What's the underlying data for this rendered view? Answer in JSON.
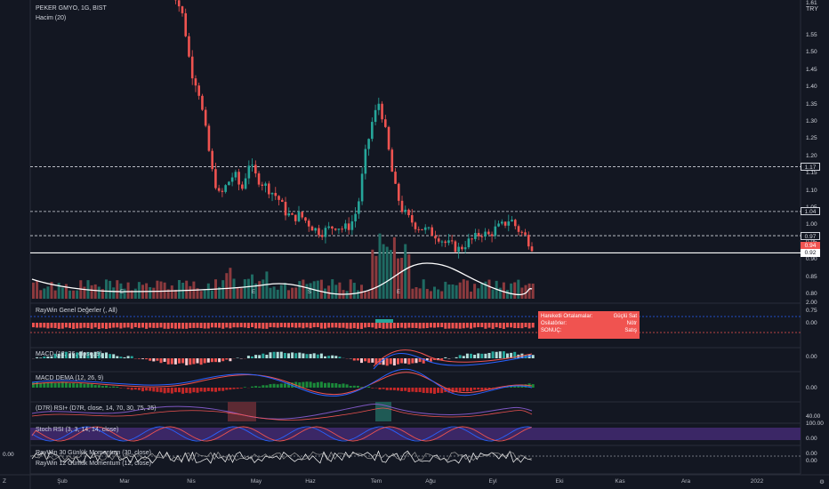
{
  "header": {
    "title": "PEKER GMYO, 1G, BIST",
    "volume": "Hacim (20)",
    "currency": "TRY"
  },
  "price_axis": {
    "top_value": "1.61",
    "labels": [
      "1.55",
      "1.50",
      "1.45",
      "1.40",
      "1.35",
      "1.30",
      "1.25",
      "1.20",
      "1.15",
      "1.10",
      "1.05",
      "1.00",
      "0.95",
      "0.90",
      "0.85",
      "0.80",
      "0.75"
    ],
    "rsi_upper": "40.00",
    "stoch_upper": "100.00",
    "stoch_lower": "0.00",
    "raywin_value": "0.00",
    "macd_value": "0.00",
    "macd_dema_value": "0.00",
    "momentum_value": "0.00",
    "momentum_value2": "0.00",
    "left_value": "0.00",
    "bottom_value": "2.00"
  },
  "tags": [
    {
      "value": "1.17",
      "style": "outline"
    },
    {
      "value": "1.04",
      "style": "outline"
    },
    {
      "value": "0.97",
      "style": "outline"
    },
    {
      "value": "0.94",
      "style": "red"
    },
    {
      "value": "0.92",
      "style": "white"
    }
  ],
  "indicators": {
    "raywin": "RayWin Genel Değerler (, All)",
    "macd": "MACD (12, 26, close, 9)",
    "macd_dema": "MACD DEMA (12, 26, 9)",
    "rsi": "(D7R) RSI+ (D7R, close, 14, 70, 30, 75, 25)",
    "stoch": "Stoch RSI (3, 3, 14, 14, close)",
    "mom30": "RayWin 30 Günlük Momentum (30, close)",
    "mom12": "RayWin 12 Günlük Momentum (12, close)"
  },
  "tooltip": {
    "rows": [
      {
        "k": "Hareketli Ortalamalar:",
        "v": "Güçlü Sat"
      },
      {
        "k": "Osilatörler:",
        "v": "Nötr"
      },
      {
        "k": "SONUÇ:",
        "v": "Satış"
      }
    ]
  },
  "markers": {
    "e": "E",
    "s": "S"
  },
  "time_axis": {
    "left_icon": "Z",
    "right_icon": "⚙",
    "labels": [
      "Şub",
      "Mar",
      "Nis",
      "May",
      "Haz",
      "Tem",
      "Ağu",
      "Eyl",
      "Eki",
      "Kas",
      "Ara",
      "2022"
    ]
  },
  "colors": {
    "bg": "#131722",
    "up": "#26a69a",
    "down": "#ef5350",
    "accent": "#f05350"
  },
  "chart_data": {
    "type": "candlestick",
    "symbol": "PEKER GMYO",
    "interval": "1G",
    "close_series": [
      1.72,
      1.66,
      1.6,
      1.45,
      1.4,
      1.28,
      1.15,
      1.08,
      1.12,
      1.15,
      1.1,
      1.18,
      1.14,
      1.12,
      1.1,
      1.08,
      1.04,
      1.02,
      1.03,
      1.01,
      0.99,
      0.98,
      0.99,
      1.0,
      0.99,
      1.0,
      1.05,
      1.2,
      1.3,
      1.36,
      1.25,
      1.12,
      1.05,
      1.02,
      1.0,
      0.99,
      0.98,
      0.97,
      0.95,
      0.94,
      0.93,
      0.95,
      0.96,
      0.98,
      0.97,
      0.99,
      1.0,
      1.02,
      0.99,
      0.97,
      0.94
    ],
    "levels": [
      1.17,
      1.04,
      0.97,
      0.92
    ],
    "last_price": 0.94
  }
}
